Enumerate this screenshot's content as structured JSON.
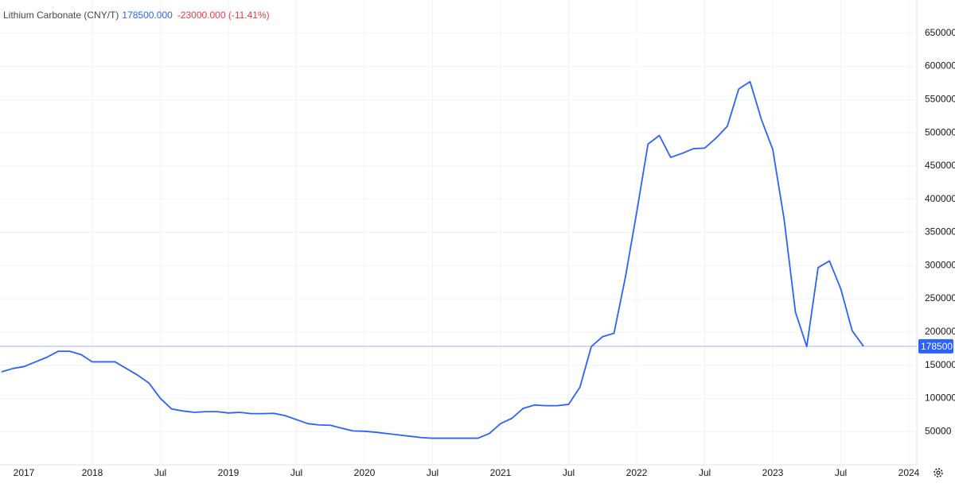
{
  "chart_data": {
    "type": "line",
    "title": "Lithium Carbonate (CNY/T)",
    "last_price": "178500.000",
    "change": "-23000.000 (-11.41%)",
    "x": [
      "2017-05",
      "2017-06",
      "2017-07",
      "2017-08",
      "2017-09",
      "2017-10",
      "2017-11",
      "2017-12",
      "2018-01",
      "2018-02",
      "2018-03",
      "2018-04",
      "2018-05",
      "2018-06",
      "2018-07",
      "2018-08",
      "2018-09",
      "2018-10",
      "2018-11",
      "2018-12",
      "2019-01",
      "2019-02",
      "2019-03",
      "2019-04",
      "2019-05",
      "2019-06",
      "2019-07",
      "2019-08",
      "2019-09",
      "2019-10",
      "2019-11",
      "2019-12",
      "2020-01",
      "2020-02",
      "2020-03",
      "2020-04",
      "2020-05",
      "2020-06",
      "2020-07",
      "2020-08",
      "2020-09",
      "2020-10",
      "2020-11",
      "2020-12",
      "2021-01",
      "2021-02",
      "2021-03",
      "2021-04",
      "2021-05",
      "2021-06",
      "2021-07",
      "2021-08",
      "2021-09",
      "2021-10",
      "2021-11",
      "2021-12",
      "2022-01",
      "2022-02",
      "2022-03",
      "2022-04",
      "2022-05",
      "2022-06",
      "2022-07",
      "2022-08",
      "2022-09",
      "2022-10",
      "2022-11",
      "2022-12",
      "2023-01",
      "2023-02",
      "2023-03",
      "2023-04",
      "2023-05",
      "2023-06",
      "2023-07",
      "2023-08",
      "2023-09"
    ],
    "series": [
      {
        "name": "Lithium Carbonate",
        "color": "#2962ff",
        "values": [
          140000,
          145000,
          148000,
          155000,
          162000,
          171000,
          171000,
          166000,
          155000,
          155000,
          155000,
          145000,
          135000,
          123000,
          100000,
          84000,
          81000,
          79000,
          80000,
          80000,
          78000,
          79000,
          77000,
          77000,
          77500,
          74000,
          68000,
          62000,
          60000,
          59500,
          55000,
          51000,
          50500,
          49000,
          47000,
          45000,
          43000,
          41000,
          40000,
          40000,
          40000,
          40000,
          40000,
          47000,
          62000,
          70000,
          85000,
          90000,
          89000,
          89000,
          91000,
          117000,
          178000,
          193000,
          198000,
          282000,
          380000,
          483000,
          496000,
          463000,
          469000,
          476000,
          477000,
          492000,
          510000,
          566000,
          577000,
          520000,
          475000,
          370000,
          230000,
          178000,
          297000,
          307000,
          265000,
          202000,
          178500
        ]
      }
    ],
    "xlim": [
      "2017-05",
      "2024-02"
    ],
    "xticks": [
      {
        "value": "2017-01",
        "label": "2017"
      },
      {
        "value": "2018-01",
        "label": "2018"
      },
      {
        "value": "2018-07",
        "label": "Jul"
      },
      {
        "value": "2019-01",
        "label": "2019"
      },
      {
        "value": "2019-07",
        "label": "Jul"
      },
      {
        "value": "2020-01",
        "label": "2020"
      },
      {
        "value": "2020-07",
        "label": "Jul"
      },
      {
        "value": "2021-01",
        "label": "2021"
      },
      {
        "value": "2021-07",
        "label": "Jul"
      },
      {
        "value": "2022-01",
        "label": "2022"
      },
      {
        "value": "2022-07",
        "label": "Jul"
      },
      {
        "value": "2023-01",
        "label": "2023"
      },
      {
        "value": "2023-07",
        "label": "Jul"
      },
      {
        "value": "2024-01",
        "label": "2024"
      }
    ],
    "ylim": [
      0,
      700000
    ],
    "yticks": [
      50000,
      100000,
      150000,
      200000,
      250000,
      300000,
      350000,
      400000,
      450000,
      500000,
      550000,
      600000,
      650000
    ],
    "grid": true
  }
}
